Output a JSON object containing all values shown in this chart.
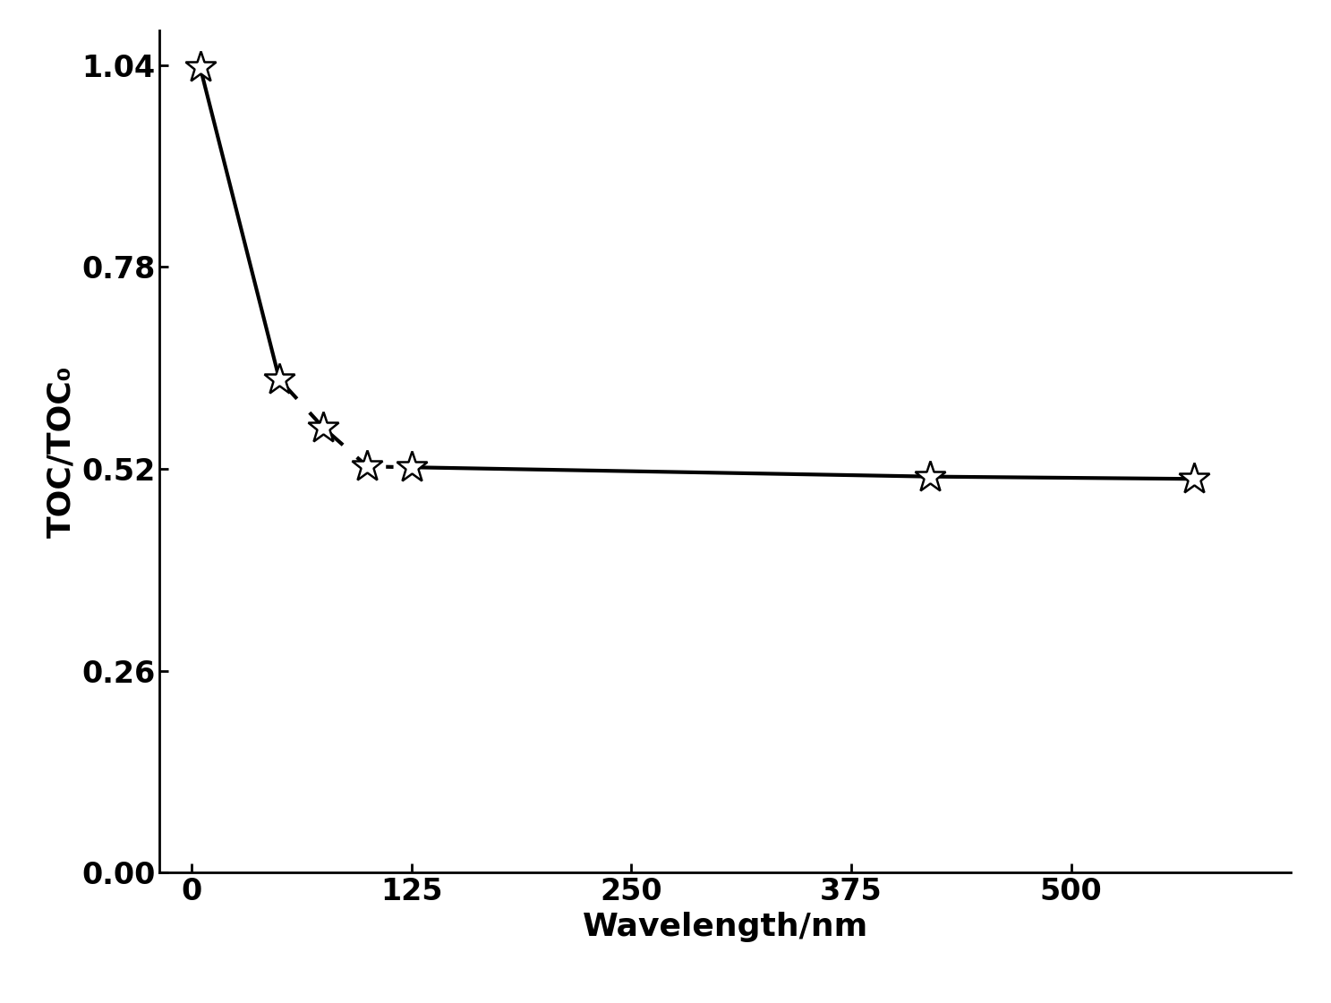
{
  "x": [
    5,
    50,
    75,
    100,
    125,
    420,
    570
  ],
  "y": [
    1.037,
    0.635,
    0.573,
    0.523,
    0.522,
    0.51,
    0.507
  ],
  "segments": [
    {
      "indices": [
        0,
        1
      ],
      "linestyle": "solid"
    },
    {
      "indices": [
        1,
        2
      ],
      "linestyle": "dashed"
    },
    {
      "indices": [
        2,
        3
      ],
      "linestyle": "dashed"
    },
    {
      "indices": [
        3,
        4
      ],
      "linestyle": "dotted"
    },
    {
      "indices": [
        4,
        5
      ],
      "linestyle": "solid"
    },
    {
      "indices": [
        5,
        6
      ],
      "linestyle": "solid"
    }
  ],
  "xlabel": "Wavelength/nm",
  "ylabel": "TOC/TOC₀",
  "xlim": [
    -18,
    625
  ],
  "ylim": [
    0.0,
    1.085
  ],
  "yticks": [
    0.0,
    0.26,
    0.52,
    0.78,
    1.04
  ],
  "xticks": [
    0,
    125,
    250,
    375,
    500
  ],
  "linewidth": 3.0,
  "markersize": 26,
  "color": "black",
  "background_color": "#ffffff",
  "xlabel_fontsize": 26,
  "ylabel_fontsize": 26,
  "tick_fontsize": 24
}
